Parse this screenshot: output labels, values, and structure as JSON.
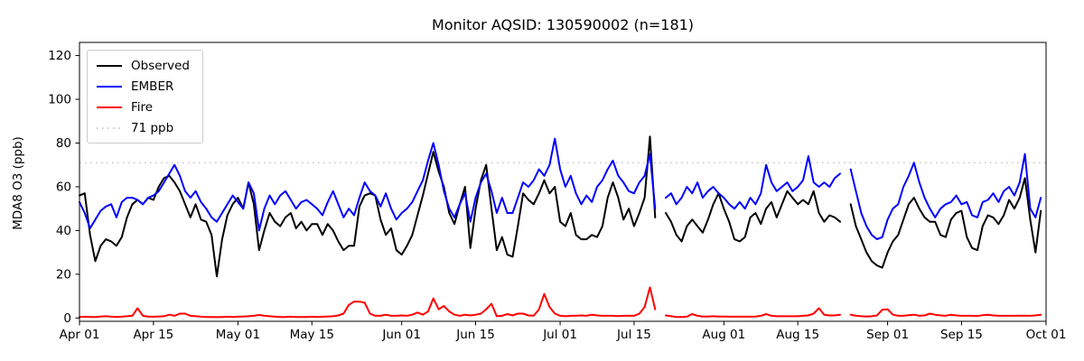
{
  "title": "Monitor AQSID: 130590002 (n=181)",
  "axes": {
    "ylabel": "MDA8 O3 (ppb)",
    "xlabel": ""
  },
  "legend": [
    {
      "label": "Observed",
      "color": "#000000",
      "dash": "solid"
    },
    {
      "label": "EMBER",
      "color": "#0000ff",
      "dash": "solid"
    },
    {
      "label": "Fire",
      "color": "#ff0000",
      "dash": "solid"
    },
    {
      "label": "71 ppb",
      "color": "#cccccc",
      "dash": "dotted"
    }
  ],
  "chart_data": {
    "type": "line",
    "title": "Monitor AQSID: 130590002 (n=181)",
    "xlabel": "",
    "ylabel": "MDA8 O3 (ppb)",
    "n_points": 181,
    "grid": false,
    "legend_position": "upper left",
    "background": "#ffffff",
    "xlim_days": [
      0,
      183
    ],
    "ylim": [
      -1.5,
      126
    ],
    "yticks": [
      0,
      20,
      40,
      60,
      80,
      100,
      120
    ],
    "xticks": [
      {
        "label": "Apr 01",
        "day": 0
      },
      {
        "label": "Apr 15",
        "day": 14
      },
      {
        "label": "May 01",
        "day": 30
      },
      {
        "label": "May 15",
        "day": 44
      },
      {
        "label": "Jun 01",
        "day": 61
      },
      {
        "label": "Jun 15",
        "day": 75
      },
      {
        "label": "Jul 01",
        "day": 91
      },
      {
        "label": "Jul 15",
        "day": 105
      },
      {
        "label": "Aug 01",
        "day": 122
      },
      {
        "label": "Aug 15",
        "day": 136
      },
      {
        "label": "Sep 01",
        "day": 153
      },
      {
        "label": "Sep 15",
        "day": 167
      },
      {
        "label": "Oct 01",
        "day": 183
      }
    ],
    "threshold": {
      "value": 71,
      "label": "71 ppb",
      "color": "#cccccc",
      "style": "dotted"
    },
    "x_unit": "days since Apr 01, daily values Apr 01 - Sep 30, null = missing day",
    "series": [
      {
        "name": "Observed",
        "color": "#000000",
        "values": [
          56,
          57,
          38,
          26,
          33,
          36,
          35,
          33,
          37,
          46,
          52,
          54,
          52,
          55,
          54,
          60,
          64,
          65,
          62,
          58,
          52,
          46,
          52,
          45,
          44,
          38,
          19,
          36,
          47,
          52,
          55,
          50,
          62,
          52,
          31,
          40,
          48,
          44,
          42,
          46,
          48,
          41,
          44,
          40,
          43,
          43,
          38,
          43,
          40,
          35,
          31,
          33,
          33,
          51,
          56,
          57,
          56,
          45,
          38,
          41,
          31,
          29,
          33,
          38,
          47,
          56,
          66,
          76,
          67,
          60,
          48,
          43,
          52,
          60,
          32,
          50,
          63,
          70,
          50,
          31,
          37,
          29,
          28,
          42,
          57,
          54,
          52,
          57,
          63,
          57,
          60,
          44,
          42,
          48,
          38,
          36,
          36,
          38,
          37,
          42,
          55,
          62,
          55,
          45,
          50,
          42,
          48,
          55,
          83,
          46,
          null,
          48,
          44,
          38,
          35,
          42,
          45,
          42,
          39,
          45,
          52,
          57,
          50,
          44,
          36,
          35,
          37,
          46,
          48,
          43,
          50,
          53,
          46,
          52,
          58,
          55,
          52,
          54,
          52,
          58,
          48,
          44,
          47,
          46,
          44,
          null,
          52,
          42,
          36,
          30,
          26,
          24,
          23,
          30,
          35,
          38,
          45,
          52,
          55,
          50,
          46,
          44,
          44,
          38,
          37,
          45,
          48,
          49,
          37,
          32,
          31,
          42,
          47,
          46,
          43,
          47,
          54,
          50,
          55,
          64,
          45,
          30,
          49
        ]
      },
      {
        "name": "EMBER",
        "color": "#0000ff",
        "values": [
          53,
          48,
          41,
          45,
          49,
          51,
          52,
          46,
          53,
          55,
          55,
          54,
          52,
          55,
          56,
          58,
          62,
          66,
          70,
          65,
          58,
          55,
          58,
          53,
          50,
          46,
          44,
          48,
          52,
          56,
          53,
          50,
          62,
          57,
          40,
          50,
          56,
          52,
          56,
          58,
          54,
          50,
          53,
          54,
          52,
          50,
          47,
          53,
          58,
          52,
          46,
          50,
          47,
          55,
          62,
          58,
          56,
          51,
          57,
          50,
          45,
          48,
          50,
          53,
          58,
          63,
          72,
          80,
          70,
          58,
          50,
          46,
          52,
          57,
          44,
          55,
          62,
          66,
          58,
          48,
          55,
          48,
          48,
          55,
          62,
          60,
          63,
          68,
          65,
          70,
          82,
          68,
          60,
          65,
          57,
          52,
          56,
          53,
          60,
          63,
          68,
          72,
          65,
          62,
          58,
          57,
          62,
          65,
          75,
          50,
          null,
          55,
          57,
          52,
          55,
          60,
          57,
          62,
          55,
          58,
          60,
          57,
          55,
          52,
          50,
          53,
          50,
          55,
          52,
          57,
          70,
          62,
          58,
          60,
          62,
          58,
          60,
          63,
          74,
          62,
          60,
          62,
          60,
          64,
          66,
          null,
          68,
          58,
          48,
          42,
          38,
          36,
          37,
          45,
          50,
          52,
          60,
          65,
          71,
          62,
          55,
          50,
          46,
          50,
          52,
          53,
          56,
          52,
          53,
          47,
          46,
          53,
          54,
          57,
          53,
          58,
          60,
          56,
          62,
          75,
          50,
          46,
          55
        ]
      },
      {
        "name": "Fire",
        "color": "#ff0000",
        "values": [
          0.5,
          0.6,
          0.5,
          0.5,
          0.7,
          0.8,
          0.6,
          0.5,
          0.6,
          0.8,
          1,
          4.5,
          1,
          0.6,
          0.6,
          0.7,
          0.8,
          1.5,
          1,
          2,
          2,
          1,
          0.8,
          0.6,
          0.5,
          0.5,
          0.4,
          0.5,
          0.6,
          0.5,
          0.6,
          0.7,
          0.8,
          1,
          1.4,
          1,
          0.8,
          0.6,
          0.5,
          0.5,
          0.6,
          0.5,
          0.5,
          0.5,
          0.6,
          0.5,
          0.6,
          0.7,
          0.8,
          1.2,
          2,
          6,
          7.5,
          7.5,
          7,
          2,
          1,
          1,
          1.5,
          1,
          1,
          1.2,
          1,
          1.5,
          2.5,
          1.5,
          3,
          9,
          4,
          5.5,
          3,
          1.5,
          1,
          1.5,
          1.2,
          1.5,
          2,
          4,
          6.5,
          0.8,
          1,
          1.8,
          1.2,
          2,
          2,
          1.2,
          1,
          4,
          11,
          5,
          2,
          1,
          0.8,
          1,
          1,
          1.2,
          1,
          1.5,
          1.2,
          1,
          1,
          1,
          0.9,
          1,
          1,
          1,
          2,
          5,
          14,
          4,
          null,
          1.2,
          0.8,
          0.5,
          0.5,
          0.6,
          1.8,
          1,
          0.7,
          0.7,
          0.8,
          0.7,
          0.7,
          0.6,
          0.6,
          0.6,
          0.6,
          0.6,
          0.7,
          1,
          1.8,
          1,
          0.8,
          0.8,
          0.8,
          0.8,
          0.8,
          1,
          1.2,
          2,
          4.5,
          1.5,
          1.2,
          1.2,
          1.5,
          null,
          1.5,
          1,
          0.8,
          0.7,
          0.8,
          1.2,
          3.8,
          4,
          1.5,
          1,
          1,
          1.3,
          1.5,
          1,
          1.2,
          2,
          1.5,
          1.2,
          1,
          1.5,
          1.2,
          1,
          1,
          1,
          0.9,
          1.3,
          1.5,
          1.2,
          1,
          1,
          1,
          1,
          1.1,
          1,
          1,
          1.2,
          1.5
        ]
      }
    ]
  }
}
